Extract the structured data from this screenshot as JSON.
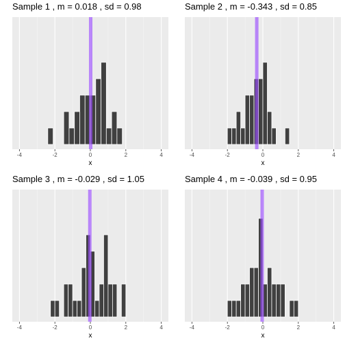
{
  "chart_data": [
    {
      "type": "bar",
      "title": "Sample 1 , m = 0.018 , sd = 0.98",
      "xlabel": "x",
      "ylabel": "",
      "xlim": [
        -4.4,
        4.4
      ],
      "x_ticks": [
        "-4",
        "-2",
        "0",
        "2",
        "4"
      ],
      "x_tick_values": [
        -4,
        -2,
        0,
        2,
        4
      ],
      "mean": 0.018,
      "sd": 0.98,
      "mean_line_color": "#9b4dff",
      "bar_color": "#404040",
      "panel_background": "#ebebeb",
      "bin_width": 0.3,
      "bins": [
        {
          "center": -2.25,
          "count": 1
        },
        {
          "center": -1.35,
          "count": 2
        },
        {
          "center": -1.05,
          "count": 1
        },
        {
          "center": -0.75,
          "count": 2
        },
        {
          "center": -0.45,
          "count": 3
        },
        {
          "center": -0.15,
          "count": 3
        },
        {
          "center": 0.15,
          "count": 3
        },
        {
          "center": 0.45,
          "count": 4
        },
        {
          "center": 0.75,
          "count": 5
        },
        {
          "center": 1.05,
          "count": 1
        },
        {
          "center": 1.35,
          "count": 2
        },
        {
          "center": 1.65,
          "count": 1
        }
      ]
    },
    {
      "type": "bar",
      "title": "Sample 2 , m = -0.343 , sd = 0.85",
      "xlabel": "x",
      "ylabel": "",
      "xlim": [
        -4.4,
        4.4
      ],
      "x_ticks": [
        "-4",
        "-2",
        "0",
        "2",
        "4"
      ],
      "x_tick_values": [
        -4,
        -2,
        0,
        2,
        4
      ],
      "mean": -0.343,
      "sd": 0.85,
      "mean_line_color": "#9b4dff",
      "bar_color": "#404040",
      "panel_background": "#ebebeb",
      "bin_width": 0.25,
      "bins": [
        {
          "center": -1.875,
          "count": 1
        },
        {
          "center": -1.625,
          "count": 1
        },
        {
          "center": -1.375,
          "count": 2
        },
        {
          "center": -1.125,
          "count": 1
        },
        {
          "center": -0.875,
          "count": 3
        },
        {
          "center": -0.625,
          "count": 3
        },
        {
          "center": -0.375,
          "count": 4
        },
        {
          "center": -0.125,
          "count": 4
        },
        {
          "center": 0.125,
          "count": 5
        },
        {
          "center": 0.375,
          "count": 2
        },
        {
          "center": 0.625,
          "count": 1
        },
        {
          "center": 1.375,
          "count": 1
        }
      ]
    },
    {
      "type": "bar",
      "title": "Sample 3 , m = -0.029 , sd = 1.05",
      "xlabel": "x",
      "ylabel": "",
      "xlim": [
        -4.4,
        4.4
      ],
      "x_ticks": [
        "-4",
        "-2",
        "0",
        "2",
        "4"
      ],
      "x_tick_values": [
        -4,
        -2,
        0,
        2,
        4
      ],
      "mean": -0.029,
      "sd": 1.05,
      "mean_line_color": "#9b4dff",
      "bar_color": "#404040",
      "panel_background": "#ebebeb",
      "bin_width": 0.25,
      "bins": [
        {
          "center": -2.125,
          "count": 1
        },
        {
          "center": -1.875,
          "count": 1
        },
        {
          "center": -1.375,
          "count": 2
        },
        {
          "center": -1.125,
          "count": 2
        },
        {
          "center": -0.875,
          "count": 1
        },
        {
          "center": -0.625,
          "count": 1
        },
        {
          "center": -0.375,
          "count": 3
        },
        {
          "center": -0.125,
          "count": 5
        },
        {
          "center": 0.125,
          "count": 4
        },
        {
          "center": 0.375,
          "count": 1
        },
        {
          "center": 0.625,
          "count": 2
        },
        {
          "center": 0.875,
          "count": 5
        },
        {
          "center": 1.125,
          "count": 2
        },
        {
          "center": 1.375,
          "count": 2
        },
        {
          "center": 1.875,
          "count": 2
        }
      ]
    },
    {
      "type": "bar",
      "title": "Sample 4 , m = -0.039 , sd = 0.95",
      "xlabel": "x",
      "ylabel": "",
      "xlim": [
        -4.4,
        4.4
      ],
      "x_ticks": [
        "-4",
        "-2",
        "0",
        "2",
        "4"
      ],
      "x_tick_values": [
        -4,
        -2,
        0,
        2,
        4
      ],
      "mean": -0.039,
      "sd": 0.95,
      "mean_line_color": "#9b4dff",
      "bar_color": "#404040",
      "panel_background": "#ebebeb",
      "bin_width": 0.25,
      "bins": [
        {
          "center": -1.875,
          "count": 1
        },
        {
          "center": -1.625,
          "count": 1
        },
        {
          "center": -1.375,
          "count": 1
        },
        {
          "center": -1.125,
          "count": 2
        },
        {
          "center": -0.875,
          "count": 2
        },
        {
          "center": -0.625,
          "count": 3
        },
        {
          "center": -0.375,
          "count": 3
        },
        {
          "center": -0.125,
          "count": 6
        },
        {
          "center": 0.125,
          "count": 2
        },
        {
          "center": 0.375,
          "count": 3
        },
        {
          "center": 0.625,
          "count": 2
        },
        {
          "center": 0.875,
          "count": 2
        },
        {
          "center": 1.125,
          "count": 2
        },
        {
          "center": 1.625,
          "count": 1
        },
        {
          "center": 1.875,
          "count": 1
        }
      ]
    }
  ]
}
